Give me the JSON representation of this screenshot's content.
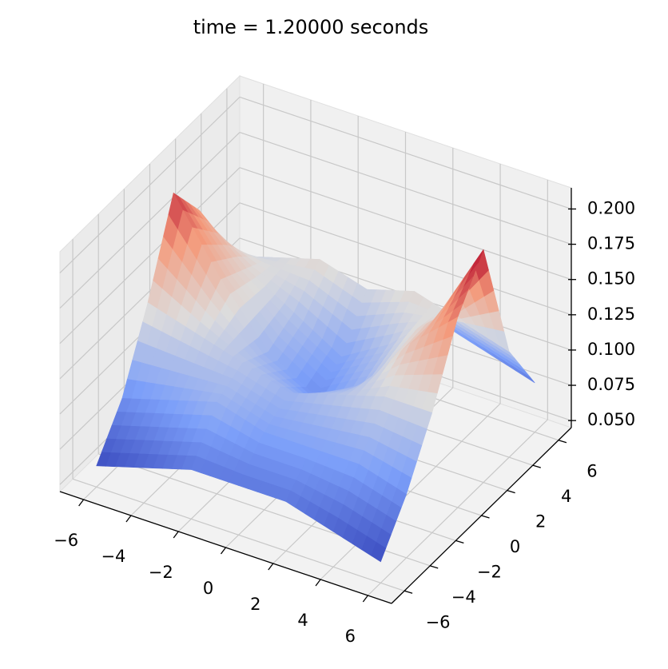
{
  "chart_data": {
    "type": "surface3d",
    "title": "time = 1.20000 seconds",
    "x": [
      -6,
      -4,
      -2,
      0,
      2,
      4,
      6
    ],
    "y": [
      -6,
      -4,
      -2,
      0,
      2,
      4,
      6
    ],
    "z": [
      [
        0.06,
        0.07,
        0.08,
        0.08,
        0.08,
        0.07,
        0.06
      ],
      [
        0.09,
        0.1,
        0.11,
        0.1,
        0.1,
        0.1,
        0.09
      ],
      [
        0.14,
        0.13,
        0.12,
        0.11,
        0.12,
        0.13,
        0.13
      ],
      [
        0.2,
        0.15,
        0.11,
        0.09,
        0.11,
        0.15,
        0.18
      ],
      [
        0.17,
        0.14,
        0.12,
        0.1,
        0.12,
        0.15,
        0.21
      ],
      [
        0.12,
        0.13,
        0.14,
        0.13,
        0.14,
        0.13,
        0.12
      ],
      [
        0.08,
        0.09,
        0.1,
        0.1,
        0.1,
        0.09,
        0.08
      ]
    ],
    "colormap": "coolwarm",
    "xlim": [
      -7,
      7
    ],
    "ylim": [
      -7,
      7
    ],
    "zlim": [
      0.045,
      0.215
    ],
    "xticks": [
      {
        "value": -6,
        "label": "−6"
      },
      {
        "value": -4,
        "label": "−4"
      },
      {
        "value": -2,
        "label": "−2"
      },
      0,
      2,
      4,
      6
    ],
    "yticks": [
      {
        "value": -6,
        "label": "−6"
      },
      {
        "value": -4,
        "label": "−4"
      },
      {
        "value": -2,
        "label": "−2"
      },
      0,
      2,
      4,
      6
    ],
    "zticks": [
      {
        "value": 0.05,
        "label": "0.050"
      },
      {
        "value": 0.075,
        "label": "0.075"
      },
      {
        "value": 0.1,
        "label": "0.100"
      },
      {
        "value": 0.125,
        "label": "0.125"
      },
      {
        "value": 0.15,
        "label": "0.150"
      },
      {
        "value": 0.175,
        "label": "0.175"
      },
      {
        "value": 0.2,
        "label": "0.200"
      }
    ],
    "grid": true
  }
}
